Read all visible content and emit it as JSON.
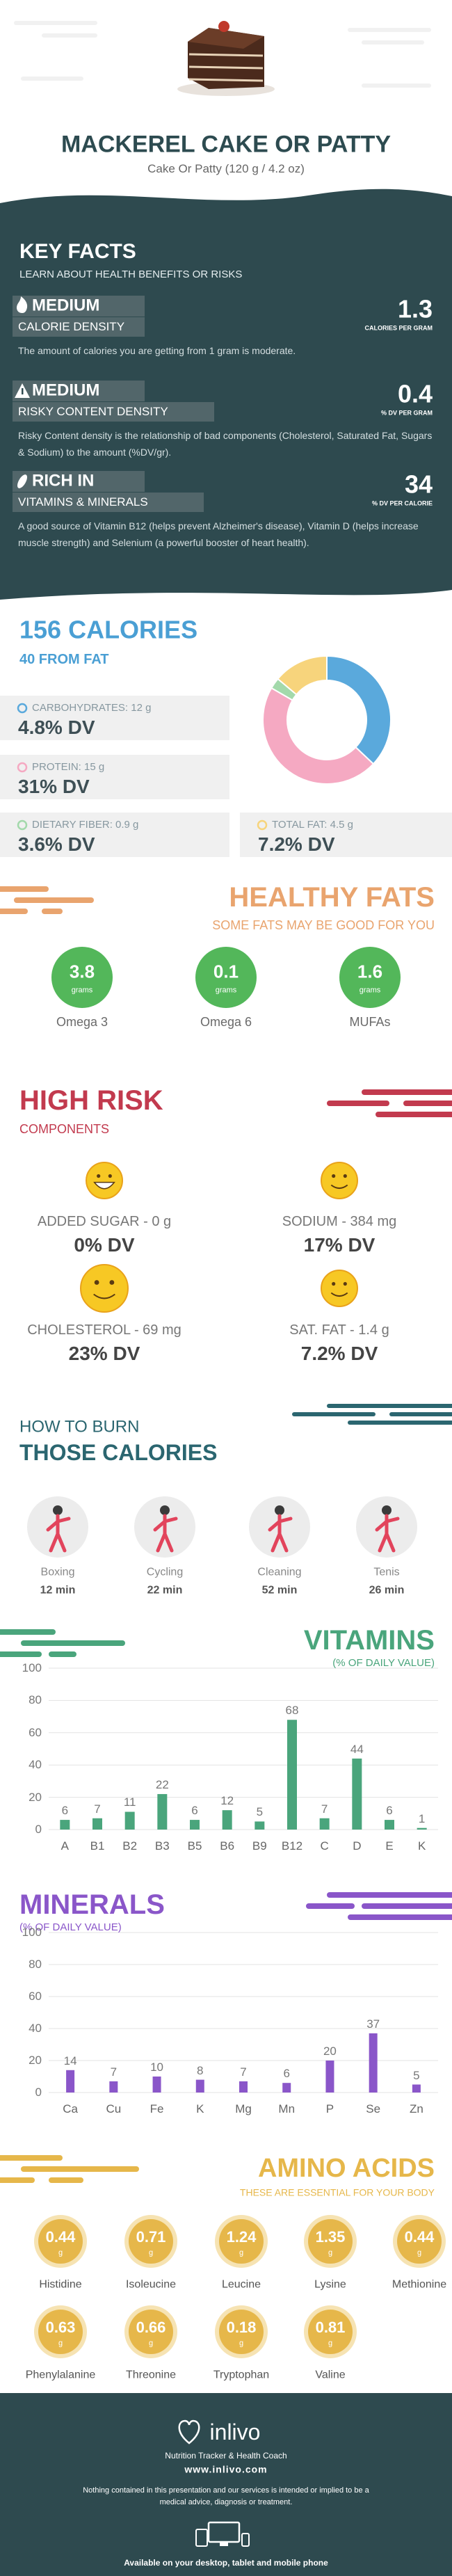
{
  "header": {
    "title": "MACKEREL CAKE OR PATTY",
    "subtitle": "Cake Or Patty (120 g / 4.2 oz)"
  },
  "key_facts": {
    "title": "KEY FACTS",
    "subtitle": "LEARN ABOUT HEALTH BENEFITS OR RISKS",
    "items": [
      {
        "level": "MEDIUM",
        "label": "CALORIE DENSITY",
        "value": 1.3,
        "unit": "CALORIES PER GRAM",
        "description": "The amount of calories you are getting from 1 gram is moderate."
      },
      {
        "level": "MEDIUM",
        "label": "RISKY CONTENT DENSITY",
        "value": 0.4,
        "unit": "% DV PER GRAM",
        "description": "Risky Content density is the relationship of bad components (Cholesterol, Saturated Fat, Sugars & Sodium) to the amount (%DV/gr)."
      },
      {
        "level": "RICH  IN",
        "label": "VITAMINS & MINERALS",
        "value": 34,
        "unit": "% DV PER CALORIE",
        "description": "A good source of Vitamin B12 (helps prevent Alzheimer's disease), Vitamin D (helps increase muscle strength) and Selenium (a powerful booster of heart health)."
      }
    ]
  },
  "calories": {
    "title": "156 CALORIES",
    "subtitle": "40 FROM FAT",
    "nutrients": [
      {
        "label": "CARBOHYDRATES: 12 g",
        "grams": 12,
        "dv": "4.8% DV",
        "color": "#5aa9dc"
      },
      {
        "label": "PROTEIN: 15 g",
        "grams": 15,
        "dv": "31% DV",
        "color": "#f5a9c2"
      },
      {
        "label": "DIETARY FIBER: 0.9 g",
        "grams": 0.9,
        "dv": "3.6% DV",
        "color": "#a3d9ab"
      },
      {
        "label": "TOTAL FAT: 4.5 g",
        "grams": 4.5,
        "dv": "7.2% DV",
        "color": "#f7d47c"
      }
    ]
  },
  "healthy_fats": {
    "title": "HEALTHY FATS",
    "subtitle": "SOME FATS MAY BE GOOD FOR YOU",
    "items": [
      {
        "name": "Omega 3",
        "value": 3.8,
        "unit": "grams"
      },
      {
        "name": "Omega 6",
        "value": 0.1,
        "unit": "grams"
      },
      {
        "name": "MUFAs",
        "value": 1.6,
        "unit": "grams"
      }
    ]
  },
  "high_risk": {
    "title": "HIGH RISK",
    "subtitle": "COMPONENTS",
    "items": [
      {
        "label": "ADDED SUGAR - 0 g",
        "dv": "0% DV"
      },
      {
        "label": "SODIUM - 384 mg",
        "dv": "17% DV"
      },
      {
        "label": "CHOLESTEROL - 69 mg",
        "dv": "23% DV"
      },
      {
        "label": "SAT. FAT - 1.4 g",
        "dv": "7.2% DV"
      }
    ]
  },
  "burn": {
    "title": "HOW TO BURN",
    "subtitle": "THOSE CALORIES",
    "activities": [
      {
        "name": "Boxing",
        "time": "12 min"
      },
      {
        "name": "Cycling",
        "time": "22 min"
      },
      {
        "name": "Cleaning",
        "time": "52 min"
      },
      {
        "name": "Tenis",
        "time": "26 min"
      }
    ]
  },
  "chart_data": [
    {
      "type": "bar",
      "title": "VITAMINS",
      "subtitle": "(% OF DAILY VALUE)",
      "categories": [
        "A",
        "B1",
        "B2",
        "B3",
        "B5",
        "B6",
        "B9",
        "B12",
        "C",
        "D",
        "E",
        "K"
      ],
      "values": [
        6,
        7,
        11,
        22,
        6,
        12,
        5,
        68,
        7,
        44,
        6,
        1
      ],
      "color": "#4aa57c",
      "ylim": [
        0,
        100
      ],
      "yticks": [
        0,
        20,
        40,
        60,
        80,
        100
      ],
      "grid": true
    },
    {
      "type": "bar",
      "title": "MINERALS",
      "subtitle": "(% OF DAILY VALUE)",
      "categories": [
        "Ca",
        "Cu",
        "Fe",
        "K",
        "Mg",
        "Mn",
        "P",
        "Se",
        "Zn"
      ],
      "values": [
        14,
        7,
        10,
        8,
        7,
        6,
        20,
        37,
        5
      ],
      "color": "#8a56c9",
      "ylim": [
        0,
        100
      ],
      "yticks": [
        0,
        20,
        40,
        60,
        80,
        100
      ],
      "grid": true
    }
  ],
  "amino_acids": {
    "title": "AMINO ACIDS",
    "subtitle": "THESE ARE ESSENTIAL FOR YOUR BODY",
    "items": [
      {
        "name": "Histidine",
        "value": 0.44,
        "unit": "g"
      },
      {
        "name": "Isoleucine",
        "value": 0.71,
        "unit": "g"
      },
      {
        "name": "Leucine",
        "value": 1.24,
        "unit": "g"
      },
      {
        "name": "Lysine",
        "value": 1.35,
        "unit": "g"
      },
      {
        "name": "Methionine",
        "value": 0.44,
        "unit": "g"
      },
      {
        "name": "Phenylalanine",
        "value": 0.63,
        "unit": "g"
      },
      {
        "name": "Threonine",
        "value": 0.66,
        "unit": "g"
      },
      {
        "name": "Tryptophan",
        "value": 0.18,
        "unit": "g"
      },
      {
        "name": "Valine",
        "value": 0.81,
        "unit": "g"
      }
    ]
  },
  "footer": {
    "brand": "inlivo",
    "tagline": "Nutrition Tracker & Health Coach",
    "url": "www.inlivo.com",
    "disclaimer": "Nothing contained in this presentation and our services is intended or implied to be a medical advice, diagnosis or treatment.",
    "availability": "Available on your desktop, tablet and mobile phone"
  }
}
